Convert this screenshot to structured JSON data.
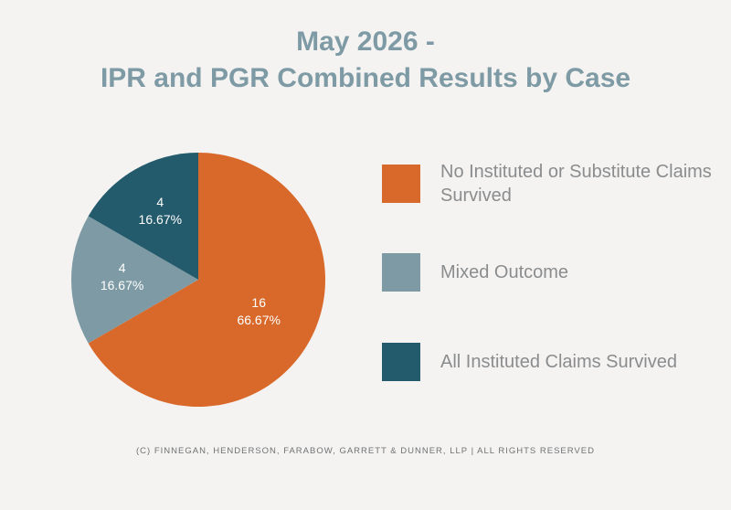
{
  "title_line1": "May 2026 -",
  "title_line2": "IPR and PGR Combined Results by Case",
  "footer": "(C) FINNEGAN, HENDERSON, FARABOW, GARRETT & DUNNER, LLP | ALL RIGHTS RESERVED",
  "chart_data": {
    "type": "pie",
    "title": "May 2026 - IPR and PGR Combined Results by Case",
    "slices": [
      {
        "name": "No Instituted or Substitute Claims Survived",
        "value": 16,
        "percent": "66.67%",
        "color": "#d9692a"
      },
      {
        "name": "Mixed Outcome",
        "value": 4,
        "percent": "16.67%",
        "color": "#7e9ba5"
      },
      {
        "name": "All Instituted Claims Survived",
        "value": 4,
        "percent": "16.67%",
        "color": "#245b6c"
      }
    ],
    "legend": "right"
  }
}
